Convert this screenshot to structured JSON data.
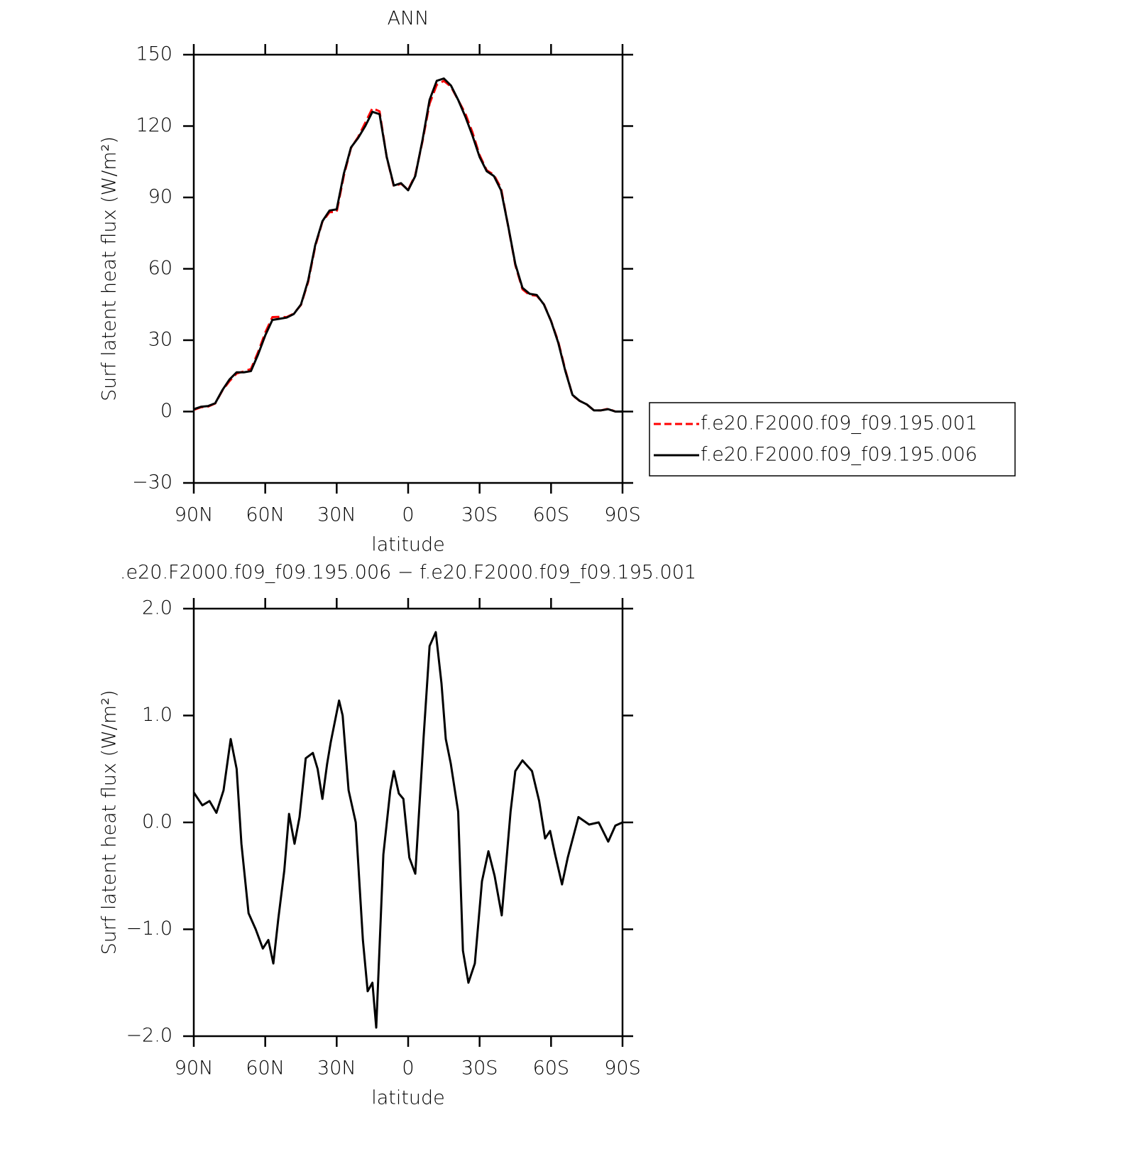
{
  "chart_data": [
    {
      "type": "line",
      "title": "ANN",
      "xlabel": "latitude",
      "ylabel": "Surf latent heat flux (W/m²)",
      "x": [
        90,
        87,
        84,
        81,
        78,
        75,
        72,
        69,
        66,
        63,
        60,
        57,
        54,
        51,
        48,
        45,
        42,
        39,
        36,
        33,
        30,
        27,
        24,
        21,
        18,
        15,
        12,
        9,
        6,
        3,
        0,
        -3,
        -6,
        -9,
        -12,
        -15,
        -18,
        -21,
        -24,
        -27,
        -30,
        -33,
        -36,
        -39,
        -42,
        -45,
        -48,
        -51,
        -54,
        -57,
        -60,
        -63,
        -66,
        -69,
        -72,
        -75,
        -78,
        -81,
        -84,
        -87,
        -90
      ],
      "series": [
        {
          "name": "f.e20.F2000.f09_f09.195.001",
          "color": "#ff0000",
          "linestyle": "dashed",
          "values": [
            0.7,
            1.8,
            2.1,
            3.4,
            8.8,
            12.8,
            16,
            16.9,
            17.9,
            25,
            33.2,
            39.7,
            39.8,
            39.7,
            41.2,
            44.8,
            54.4,
            69.4,
            79.8,
            83.8,
            83.9,
            99.1,
            110.8,
            115.4,
            121.4,
            127.5,
            126.2,
            106.9,
            94.6,
            95.8,
            93.2,
            99.5,
            113.4,
            129.4,
            137.3,
            139,
            136.5,
            130.9,
            125.3,
            117.4,
            107.8,
            101.4,
            99.5,
            93.9,
            77.9,
            61.5,
            51.4,
            49,
            48.7,
            45.1,
            38.1,
            29.5,
            17.5,
            6.8,
            4.5,
            3,
            0.5,
            0.5,
            1.2,
            0,
            0
          ]
        },
        {
          "name": "f.e20.F2000.f09_f09.195.006",
          "color": "#000000",
          "linestyle": "solid",
          "values": [
            1,
            2,
            2.3,
            3.5,
            9,
            13.5,
            16.5,
            16.5,
            17,
            24,
            32,
            38.5,
            39,
            39.5,
            41,
            45,
            55,
            70,
            80,
            84.5,
            85,
            100,
            111,
            115,
            120,
            126,
            125,
            107,
            95,
            96,
            93,
            99,
            114,
            131,
            139,
            140,
            137,
            131,
            124,
            116,
            107,
            101,
            99,
            93,
            78,
            62,
            52,
            49.5,
            49,
            45,
            38,
            29,
            17,
            7,
            4.5,
            3,
            0.5,
            0.5,
            1,
            0,
            0
          ]
        }
      ],
      "xlim": [
        90,
        -90
      ],
      "xticks": [
        {
          "value": 90,
          "label": "90N"
        },
        {
          "value": 60,
          "label": "60N"
        },
        {
          "value": 30,
          "label": "30N"
        },
        0,
        {
          "value": -30,
          "label": "30S"
        },
        {
          "value": -60,
          "label": "60S"
        },
        {
          "value": -90,
          "label": "90S"
        }
      ],
      "ylim": [
        -30,
        150
      ],
      "yticks": [
        {
          "value": -30,
          "label": "−30"
        },
        0,
        30,
        60,
        90,
        120,
        150
      ],
      "legend": "right"
    },
    {
      "type": "line",
      "title": ".e20.F2000.f09_f09.195.006 − f.e20.F2000.f09_f09.195.001",
      "xlabel": "latitude",
      "ylabel": "Surf latent heat flux (W/m²)",
      "x": [
        90,
        86.4,
        83.4,
        80.5,
        77.5,
        74.5,
        72,
        70,
        67,
        64,
        61,
        58.7,
        56.6,
        54.5,
        52,
        50,
        47.7,
        45.6,
        43,
        40,
        38,
        36,
        34,
        32.5,
        29,
        27.5,
        25,
        22,
        19,
        17,
        15,
        13.4,
        10.4,
        7.5,
        6,
        3.9,
        2,
        -0.5,
        -3,
        -6.5,
        -9,
        -11.6,
        -14,
        -15.8,
        -17.9,
        -21,
        -23,
        -25.3,
        -28,
        -31,
        -33.7,
        -36.3,
        -39.3,
        -43,
        -45,
        -48,
        -52,
        -55,
        -57.5,
        -59.6,
        -61.7,
        -64.6,
        -67,
        -71.5,
        -76,
        -80,
        -84,
        -87,
        -90
      ],
      "series": [
        {
          "color": "#000000",
          "linestyle": "solid",
          "values": [
            0.28,
            0.16,
            0.2,
            0.09,
            0.3,
            0.78,
            0.5,
            -0.2,
            -0.85,
            -1.0,
            -1.18,
            -1.1,
            -1.32,
            -0.9,
            -0.45,
            0.08,
            -0.2,
            0.05,
            0.6,
            0.65,
            0.5,
            0.22,
            0.55,
            0.75,
            1.14,
            1.0,
            0.3,
            0.0,
            -1.1,
            -1.58,
            -1.5,
            -1.92,
            -0.3,
            0.3,
            0.48,
            0.27,
            0.22,
            -0.33,
            -0.48,
            0.8,
            1.65,
            1.78,
            1.3,
            0.78,
            0.55,
            0.1,
            -1.2,
            -1.5,
            -1.32,
            -0.55,
            -0.27,
            -0.5,
            -0.87,
            0.1,
            0.48,
            0.58,
            0.48,
            0.2,
            -0.15,
            -0.08,
            -0.3,
            -0.58,
            -0.33,
            0.05,
            -0.02,
            0.0,
            -0.18,
            -0.03,
            0.0
          ]
        }
      ],
      "xlim": [
        90,
        -90
      ],
      "xticks": [
        {
          "value": 90,
          "label": "90N"
        },
        {
          "value": 60,
          "label": "60N"
        },
        {
          "value": 30,
          "label": "30N"
        },
        0,
        {
          "value": -30,
          "label": "30S"
        },
        {
          "value": -60,
          "label": "60S"
        },
        {
          "value": -90,
          "label": "90S"
        }
      ],
      "ylim": [
        -2,
        2
      ],
      "yticks": [
        {
          "value": -2,
          "label": "−2.0"
        },
        {
          "value": -1,
          "label": "−1.0"
        },
        {
          "value": 0,
          "label": "0.0"
        },
        {
          "value": 1,
          "label": "1.0"
        },
        {
          "value": 2,
          "label": "2.0"
        }
      ]
    }
  ]
}
